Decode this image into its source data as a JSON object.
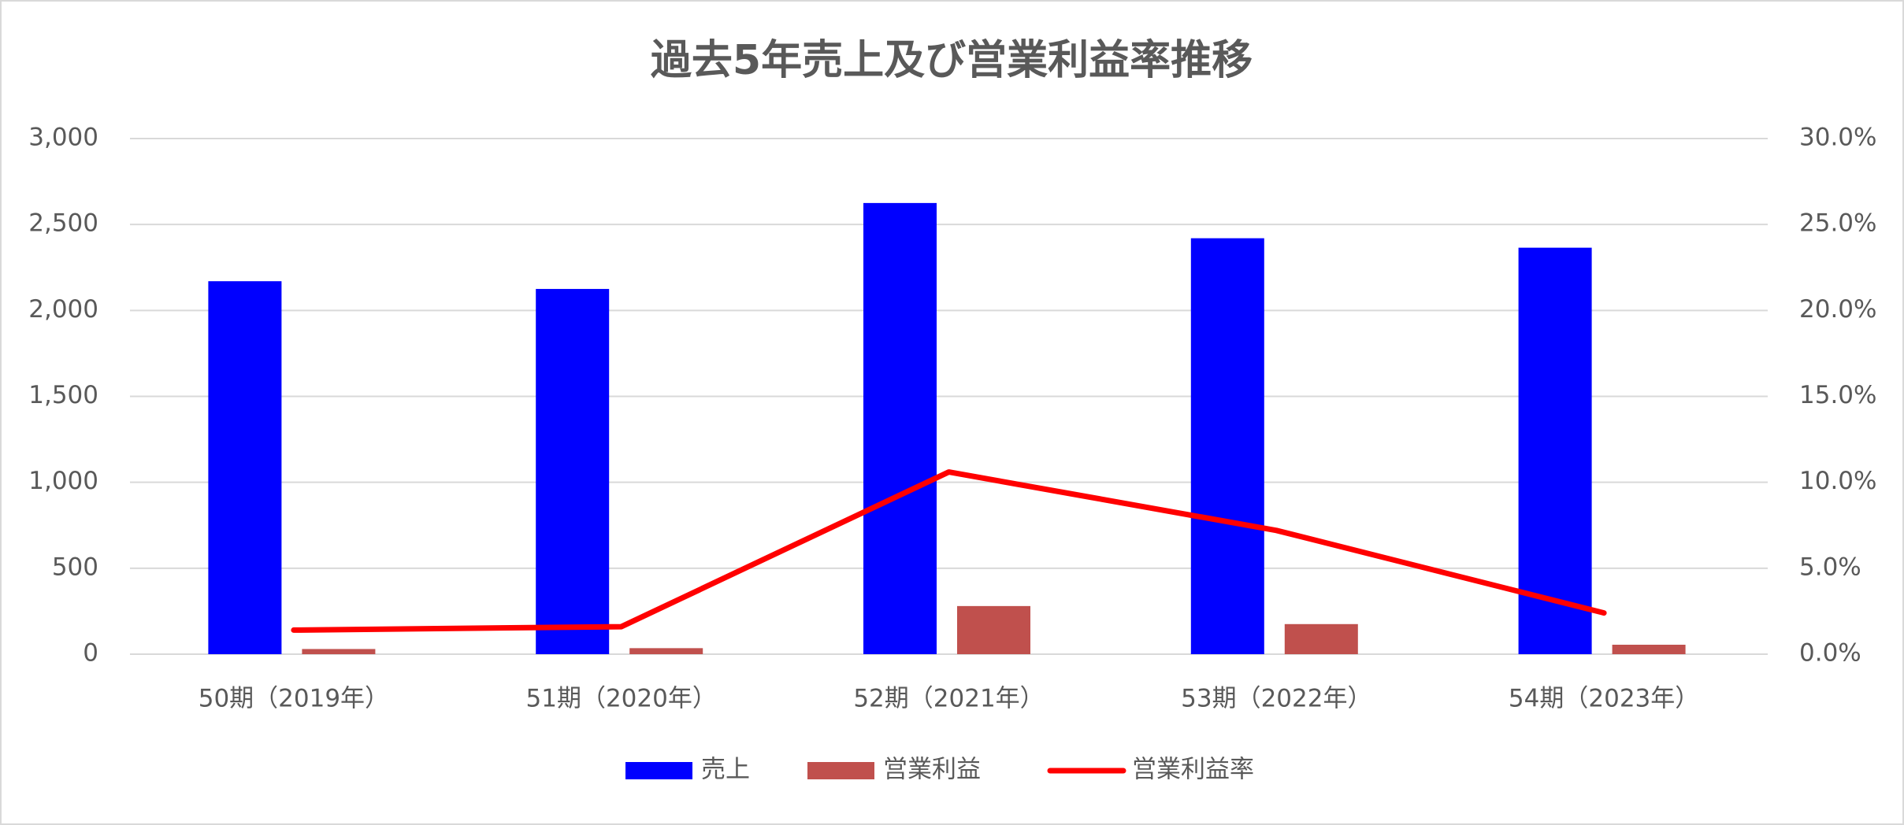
{
  "chart_data": {
    "type": "bar",
    "title": "過去5年売上及び営業利益率推移",
    "categories": [
      "50期（2019年）",
      "51期（2020年）",
      "52期（2021年）",
      "53期（2022年）",
      "54期（2023年）"
    ],
    "series": [
      {
        "name": "売上",
        "color": "#0000ff",
        "type": "bar",
        "values": [
          2170,
          2125,
          2625,
          2420,
          2365
        ]
      },
      {
        "name": "営業利益",
        "color": "#c0504d",
        "type": "bar",
        "values": [
          30,
          35,
          280,
          175,
          55
        ]
      },
      {
        "name": "営業利益率",
        "color": "#ff0000",
        "type": "line",
        "axis": "y2",
        "values": [
          1.4,
          1.6,
          10.6,
          7.2,
          2.4
        ]
      }
    ],
    "ylim": [
      0,
      3000
    ],
    "yticks": [
      0,
      {
        "value": 500,
        "label": "500"
      },
      {
        "value": 1000,
        "label": "1,000"
      },
      {
        "value": 1500,
        "label": "1,500"
      },
      {
        "value": 2000,
        "label": "2,000"
      },
      {
        "value": 2500,
        "label": "2,500"
      },
      {
        "value": 3000,
        "label": "3,000"
      }
    ],
    "y2lim": [
      0,
      30
    ],
    "y2ticks": [
      {
        "value": 0,
        "label": "0.0%"
      },
      {
        "value": 5,
        "label": "5.0%"
      },
      {
        "value": 10,
        "label": "10.0%"
      },
      {
        "value": 15,
        "label": "15.0%"
      },
      {
        "value": 20,
        "label": "20.0%"
      },
      {
        "value": 25,
        "label": "25.0%"
      },
      {
        "value": 30,
        "label": "30.0%"
      }
    ],
    "grid": true,
    "legend": "bottom"
  }
}
